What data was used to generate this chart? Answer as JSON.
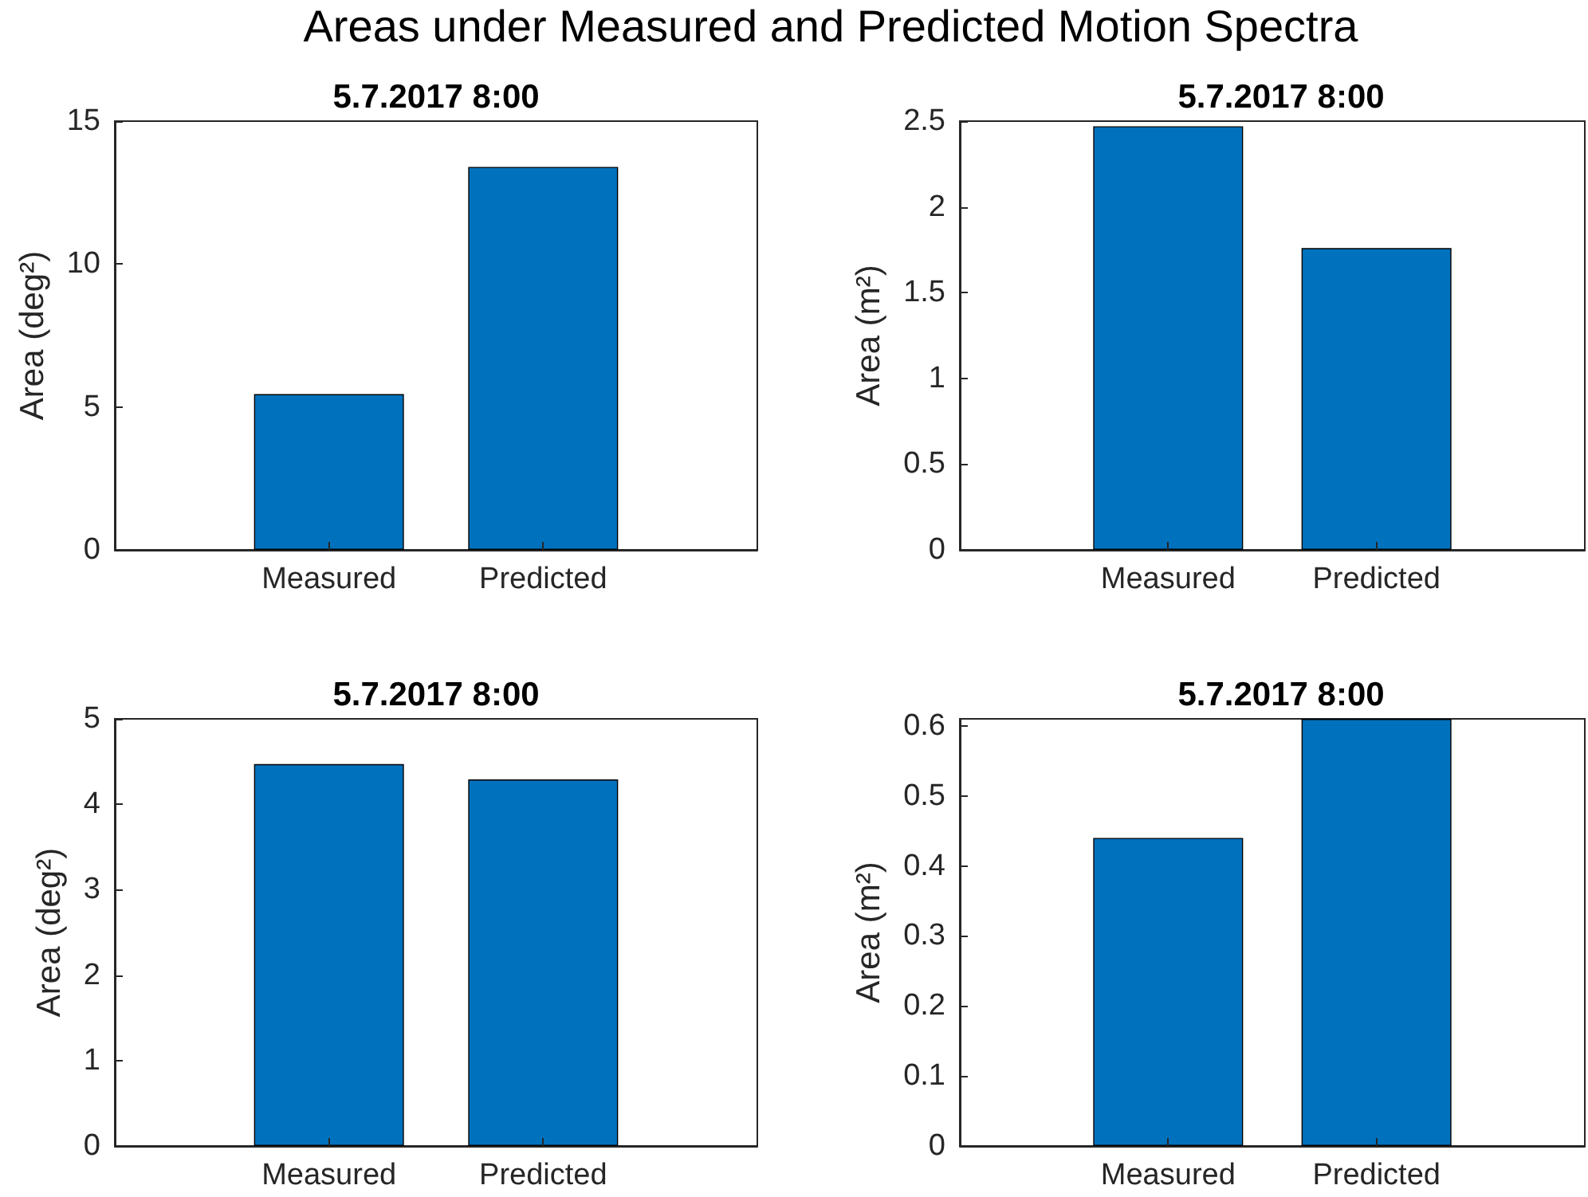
{
  "chart_data": [
    {
      "type": "other",
      "title": "Areas under Measured and Predicted Motion Spectra"
    },
    {
      "type": "bar",
      "title": "5.7.2017 8:00",
      "ylabel": "Area (deg²)",
      "categories": [
        "Measured",
        "Predicted"
      ],
      "values": [
        5.45,
        13.4
      ],
      "color": "#0072bd",
      "ylim": [
        0,
        15
      ],
      "yticks": [
        0,
        5,
        10,
        15
      ]
    },
    {
      "type": "bar",
      "title": "5.7.2017 8:00",
      "ylabel": "Area (m²)",
      "categories": [
        "Measured",
        "Predicted"
      ],
      "values": [
        2.47,
        1.76
      ],
      "color": "#0072bd",
      "ylim": [
        0,
        2.5
      ],
      "yticks": [
        0,
        0.5,
        1,
        1.5,
        2,
        2.5
      ]
    },
    {
      "type": "bar",
      "title": "5.7.2017 8:00",
      "ylabel": "Area (deg²)",
      "categories": [
        "Measured",
        "Predicted"
      ],
      "values": [
        4.47,
        4.29
      ],
      "color": "#0072bd",
      "ylim": [
        0,
        5
      ],
      "yticks": [
        0,
        1,
        2,
        3,
        4,
        5
      ]
    },
    {
      "type": "bar",
      "title": "5.7.2017 8:00",
      "ylabel": "Area (m²)",
      "categories": [
        "Measured",
        "Predicted"
      ],
      "values": [
        0.44,
        0.61
      ],
      "color": "#0072bd",
      "ylim": [
        0,
        0.61
      ],
      "yticks": [
        0,
        0.1,
        0.2,
        0.3,
        0.4,
        0.5,
        0.6
      ]
    }
  ]
}
